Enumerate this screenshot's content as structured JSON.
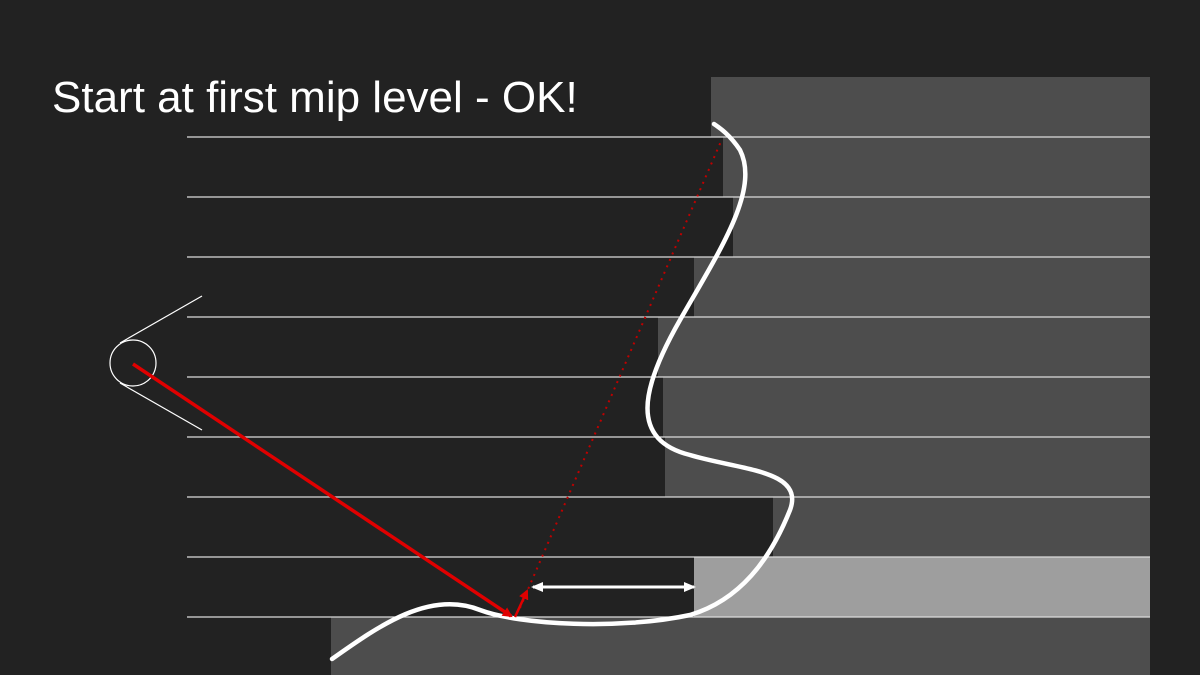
{
  "slide": {
    "title": "Start at first mip level - OK!"
  },
  "colors": {
    "background": "#222222",
    "heightfield": "#4d4d4d",
    "highlight_cell": "#9e9e9e",
    "grid_line": "#dcdcdc",
    "surface_curve": "#ffffff",
    "ray": "#e00000"
  },
  "icons": {
    "eye": "eye-icon"
  }
}
